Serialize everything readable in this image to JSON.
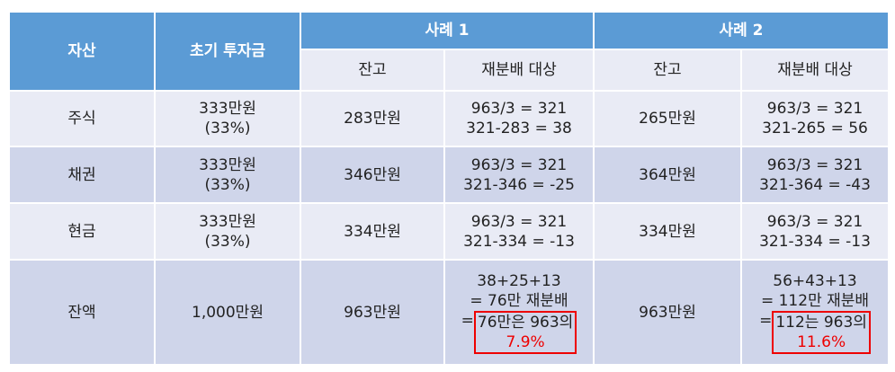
{
  "table": {
    "header": {
      "asset": "자산",
      "initial": "초기 투자금",
      "case1": "사례 1",
      "case2": "사례 2",
      "balance1": "잔고",
      "target1": "재분배 대상",
      "balance2": "잔고",
      "target2": "재분배 대상"
    },
    "rows": [
      [
        [
          "주식"
        ],
        [
          "333만원",
          "(33%)"
        ],
        [
          "283만원"
        ],
        [
          "963/3 = 321",
          "321-283 = 38"
        ],
        [
          "265만원"
        ],
        [
          "963/3 = 321",
          "321-265 = 56"
        ]
      ],
      [
        [
          "채권"
        ],
        [
          "333만원",
          "(33%)"
        ],
        [
          "346만원"
        ],
        [
          "963/3 = 321",
          "321-346 = -25"
        ],
        [
          "364만원"
        ],
        [
          "963/3 = 321",
          "321-364 = -43"
        ]
      ],
      [
        [
          "현금"
        ],
        [
          "333만원",
          "(33%)"
        ],
        [
          "334만원"
        ],
        [
          "963/3 = 321",
          "321-334 = -13"
        ],
        [
          "334만원"
        ],
        [
          "963/3 = 321",
          "321-334 = -13"
        ]
      ],
      [
        [
          "잔액"
        ],
        [
          "1,000만원"
        ],
        [
          "963만원"
        ],
        {
          "lines": [
            "38+25+13",
            "= 76만 재분배"
          ],
          "prefix": "=",
          "note": "76만은 963의",
          "value": "7.9%"
        },
        [
          "963만원"
        ],
        {
          "lines": [
            "56+43+13",
            "= 112만 재분배"
          ],
          "prefix": "=",
          "note": "112는 963의",
          "value": "11.6%"
        }
      ]
    ]
  }
}
